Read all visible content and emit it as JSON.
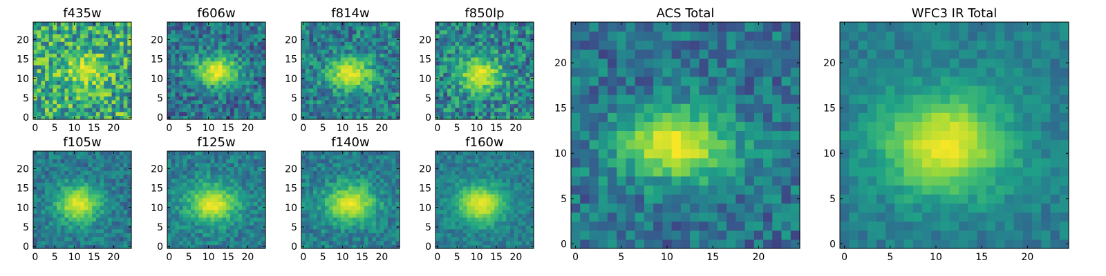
{
  "colormap": {
    "name": "viridis",
    "stops": [
      "#440154",
      "#46327e",
      "#365c8d",
      "#277f8e",
      "#1fa187",
      "#4ac16d",
      "#a0da39",
      "#fde725"
    ]
  },
  "chart_data": [
    {
      "type": "heatmap",
      "title": "f435w",
      "grid": "25x25",
      "xlim": [
        0,
        25
      ],
      "ylim": [
        0,
        25
      ],
      "xticks": [
        0,
        5,
        10,
        15,
        20
      ],
      "yticks": [
        0,
        5,
        10,
        15,
        20
      ],
      "blob": {
        "peak_x": 13,
        "peak_y": 12,
        "sigma_x": 3.5,
        "sigma_y": 2.5,
        "peak_level": 0.98,
        "background_level": 0.6
      },
      "noise_level": 0.3
    },
    {
      "type": "heatmap",
      "title": "f606w",
      "grid": "25x25",
      "xlim": [
        0,
        25
      ],
      "ylim": [
        0,
        25
      ],
      "xticks": [
        0,
        5,
        10,
        15,
        20
      ],
      "yticks": [
        0,
        5,
        10,
        15,
        20
      ],
      "blob": {
        "peak_x": 12,
        "peak_y": 12,
        "sigma_x": 4,
        "sigma_y": 2.8,
        "peak_level": 0.97,
        "background_level": 0.38
      },
      "noise_level": 0.22
    },
    {
      "type": "heatmap",
      "title": "f814w",
      "grid": "25x25",
      "xlim": [
        0,
        25
      ],
      "ylim": [
        0,
        25
      ],
      "xticks": [
        0,
        5,
        10,
        15,
        20
      ],
      "yticks": [
        0,
        5,
        10,
        15,
        20
      ],
      "blob": {
        "peak_x": 12,
        "peak_y": 11,
        "sigma_x": 4,
        "sigma_y": 3,
        "peak_level": 0.97,
        "background_level": 0.42
      },
      "noise_level": 0.22
    },
    {
      "type": "heatmap",
      "title": "f850lp",
      "grid": "25x25",
      "xlim": [
        0,
        25
      ],
      "ylim": [
        0,
        25
      ],
      "xticks": [
        0,
        5,
        10,
        15,
        20
      ],
      "yticks": [
        0,
        5,
        10,
        15,
        20
      ],
      "blob": {
        "peak_x": 11,
        "peak_y": 11,
        "sigma_x": 3.8,
        "sigma_y": 3,
        "peak_level": 0.97,
        "background_level": 0.45
      },
      "noise_level": 0.25
    },
    {
      "type": "heatmap",
      "title": "f105w",
      "grid": "25x25",
      "xlim": [
        0,
        25
      ],
      "ylim": [
        0,
        25
      ],
      "xticks": [
        0,
        5,
        10,
        15,
        20
      ],
      "yticks": [
        0,
        5,
        10,
        15,
        20
      ],
      "blob": {
        "peak_x": 11,
        "peak_y": 11,
        "sigma_x": 4,
        "sigma_y": 3.5,
        "peak_level": 0.97,
        "background_level": 0.4
      },
      "noise_level": 0.15
    },
    {
      "type": "heatmap",
      "title": "f125w",
      "grid": "25x25",
      "xlim": [
        0,
        25
      ],
      "ylim": [
        0,
        25
      ],
      "xticks": [
        0,
        5,
        10,
        15,
        20
      ],
      "yticks": [
        0,
        5,
        10,
        15,
        20
      ],
      "blob": {
        "peak_x": 11,
        "peak_y": 11,
        "sigma_x": 4.5,
        "sigma_y": 3.5,
        "peak_level": 0.97,
        "background_level": 0.42
      },
      "noise_level": 0.15
    },
    {
      "type": "heatmap",
      "title": "f140w",
      "grid": "25x25",
      "xlim": [
        0,
        25
      ],
      "ylim": [
        0,
        25
      ],
      "xticks": [
        0,
        5,
        10,
        15,
        20
      ],
      "yticks": [
        0,
        5,
        10,
        15,
        20
      ],
      "blob": {
        "peak_x": 12,
        "peak_y": 11,
        "sigma_x": 4.5,
        "sigma_y": 3.5,
        "peak_level": 0.97,
        "background_level": 0.42
      },
      "noise_level": 0.15
    },
    {
      "type": "heatmap",
      "title": "f160w",
      "grid": "25x25",
      "xlim": [
        0,
        25
      ],
      "ylim": [
        0,
        25
      ],
      "xticks": [
        0,
        5,
        10,
        15,
        20
      ],
      "yticks": [
        0,
        5,
        10,
        15,
        20
      ],
      "blob": {
        "peak_x": 11,
        "peak_y": 11,
        "sigma_x": 4.5,
        "sigma_y": 3.5,
        "peak_level": 0.97,
        "background_level": 0.42
      },
      "noise_level": 0.12
    },
    {
      "type": "heatmap",
      "title": "ACS Total",
      "grid": "25x25",
      "xlim": [
        0,
        25
      ],
      "ylim": [
        0,
        25
      ],
      "xticks": [
        0,
        5,
        10,
        15,
        20
      ],
      "yticks": [
        0,
        5,
        10,
        15,
        20
      ],
      "blob": {
        "peak_x": 11,
        "peak_y": 11,
        "sigma_x": 4.5,
        "sigma_y": 2.8,
        "peak_level": 0.98,
        "background_level": 0.38
      },
      "noise_level": 0.18
    },
    {
      "type": "heatmap",
      "title": "WFC3 IR Total",
      "grid": "25x25",
      "xlim": [
        0,
        25
      ],
      "ylim": [
        0,
        25
      ],
      "xticks": [
        0,
        5,
        10,
        15,
        20
      ],
      "yticks": [
        0,
        5,
        10,
        15,
        20
      ],
      "blob": {
        "peak_x": 11,
        "peak_y": 11,
        "sigma_x": 5,
        "sigma_y": 4,
        "peak_level": 0.98,
        "background_level": 0.42
      },
      "noise_level": 0.1
    }
  ]
}
